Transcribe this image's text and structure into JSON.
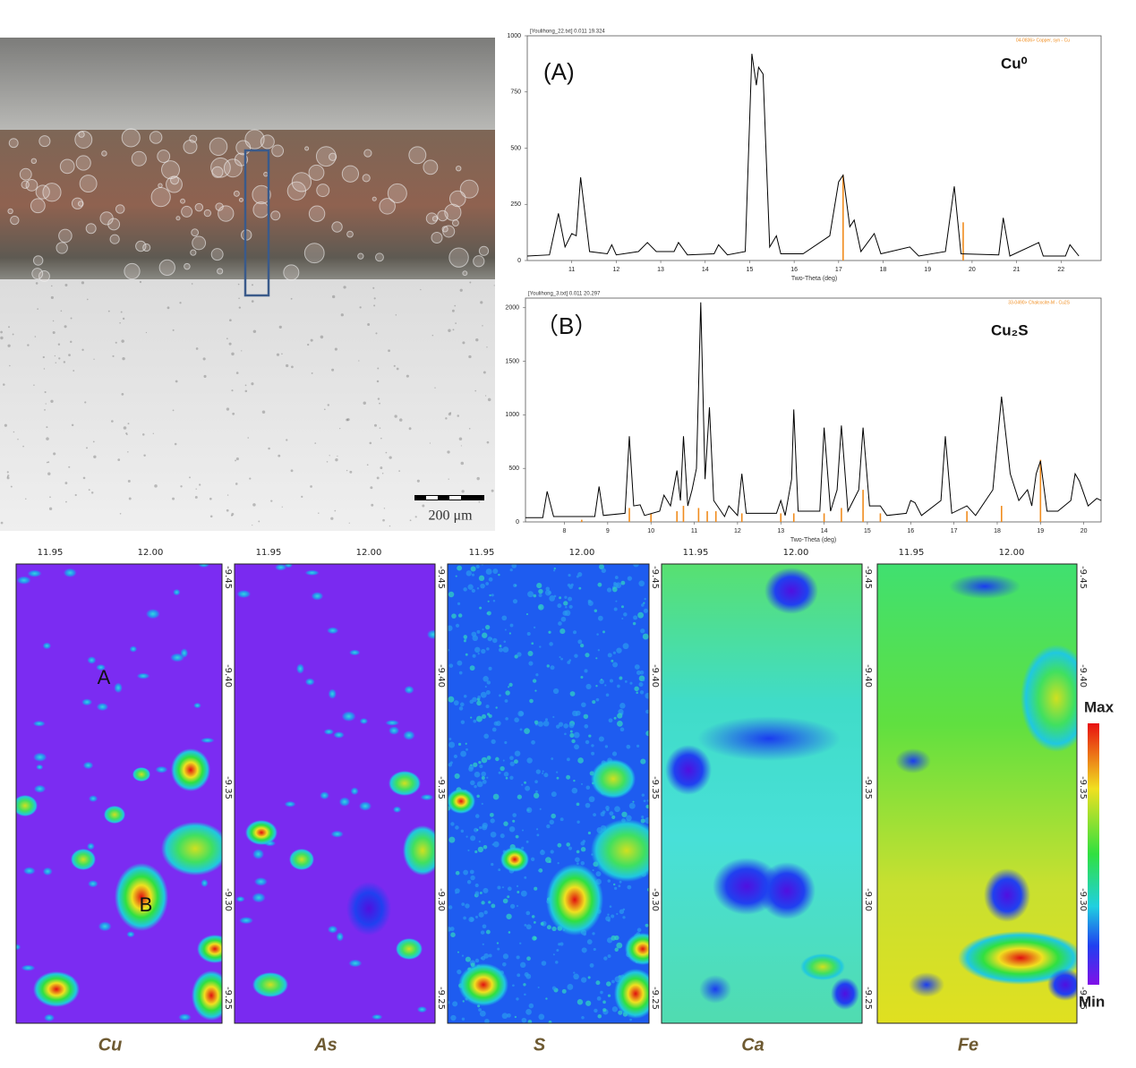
{
  "micrograph": {
    "scale_label": "200 μm"
  },
  "chart_data": [
    {
      "type": "line",
      "header": "[Youlihong_22.txt] 0.011 19.324",
      "reference_label": "04-0836> Copper, syn - Cu",
      "label": "(A)",
      "phase": "Cu⁰",
      "xlabel": "Two-Theta (deg)",
      "xlim": [
        10,
        22.9
      ],
      "xticks": [
        11,
        12,
        13,
        14,
        15,
        16,
        17,
        18,
        19,
        20,
        21,
        22
      ],
      "ylim": [
        0,
        1000
      ],
      "yticks": [
        0,
        250,
        500,
        750,
        1000
      ],
      "color": "#000000",
      "x": [
        10.0,
        10.5,
        10.7,
        10.85,
        11.0,
        11.1,
        11.2,
        11.4,
        11.8,
        11.9,
        12.0,
        12.5,
        12.7,
        12.9,
        13.3,
        13.4,
        13.6,
        14.2,
        14.3,
        14.5,
        14.9,
        15.05,
        15.15,
        15.2,
        15.3,
        15.45,
        15.6,
        15.7,
        16.2,
        16.8,
        17.0,
        17.1,
        17.25,
        17.35,
        17.5,
        17.8,
        17.95,
        18.6,
        18.8,
        19.4,
        19.6,
        19.75,
        20.6,
        20.7,
        20.85,
        21.5,
        21.6,
        22.1,
        22.2,
        22.4
      ],
      "values": [
        20,
        25,
        210,
        60,
        120,
        110,
        370,
        40,
        30,
        70,
        25,
        40,
        80,
        40,
        40,
        80,
        25,
        30,
        70,
        25,
        40,
        920,
        780,
        860,
        830,
        60,
        110,
        30,
        30,
        110,
        350,
        380,
        150,
        180,
        40,
        120,
        30,
        60,
        20,
        40,
        330,
        30,
        25,
        190,
        20,
        80,
        20,
        20,
        70,
        20
      ],
      "reference": {
        "color": "#f08c1e",
        "x": [
          17.1,
          19.8
        ],
        "values": [
          380,
          170
        ]
      }
    },
    {
      "type": "line",
      "header": "[Youlihong_3.txt] 0.011 20.297",
      "reference_label": "33-0490> Chalcocite-M - Cu2S",
      "label": "（B）",
      "phase": "Cu₂S",
      "xlabel": "Two-Theta (deg)",
      "xlim": [
        7.1,
        20.4
      ],
      "xticks": [
        8,
        9,
        10,
        11,
        12,
        13,
        14,
        15,
        16,
        17,
        18,
        19,
        20
      ],
      "ylim": [
        0,
        2090
      ],
      "yticks": [
        0,
        500,
        1000,
        1500,
        2000
      ],
      "color": "#000000",
      "x": [
        7.1,
        7.5,
        7.6,
        7.75,
        8.7,
        8.8,
        8.9,
        9.4,
        9.5,
        9.6,
        9.75,
        9.85,
        10.2,
        10.3,
        10.45,
        10.6,
        10.68,
        10.75,
        10.85,
        10.95,
        11.05,
        11.15,
        11.25,
        11.35,
        11.45,
        11.7,
        11.8,
        12.0,
        12.1,
        12.2,
        12.9,
        13.0,
        13.1,
        13.25,
        13.3,
        13.4,
        13.9,
        14.0,
        14.15,
        14.3,
        14.4,
        14.55,
        14.8,
        14.9,
        15.05,
        15.3,
        15.45,
        15.9,
        16.0,
        16.1,
        16.25,
        16.7,
        16.8,
        16.95,
        17.3,
        17.5,
        17.9,
        18.1,
        18.3,
        18.5,
        18.7,
        18.8,
        18.9,
        19.0,
        19.15,
        19.4,
        19.7,
        19.8,
        19.9,
        20.1,
        20.3,
        20.4
      ],
      "values": [
        40,
        40,
        285,
        50,
        50,
        330,
        60,
        80,
        800,
        150,
        160,
        60,
        100,
        250,
        150,
        480,
        200,
        800,
        150,
        300,
        500,
        2050,
        400,
        1070,
        200,
        50,
        150,
        60,
        450,
        80,
        80,
        200,
        60,
        400,
        1050,
        100,
        100,
        880,
        100,
        300,
        900,
        100,
        300,
        880,
        150,
        150,
        60,
        80,
        200,
        180,
        60,
        200,
        800,
        80,
        150,
        60,
        300,
        1170,
        450,
        200,
        300,
        150,
        450,
        570,
        100,
        100,
        200,
        450,
        380,
        150,
        220,
        200
      ],
      "reference": {
        "color": "#f08c1e",
        "x": [
          8.4,
          9.5,
          10.0,
          10.6,
          10.75,
          11.1,
          11.3,
          11.5,
          12.1,
          13.0,
          13.3,
          14.0,
          14.4,
          14.9,
          15.3,
          17.3,
          18.1,
          19.0
        ],
        "values": [
          20,
          130,
          80,
          100,
          150,
          130,
          100,
          100,
          80,
          80,
          80,
          80,
          130,
          300,
          80,
          100,
          150,
          580
        ]
      }
    }
  ],
  "maps": {
    "x_ticks": [
      "11.95",
      "12.00"
    ],
    "y_ticks": [
      "-9.45",
      "-9.40",
      "-9.35",
      "-9.30",
      "-9.25"
    ],
    "panels": [
      "Cu",
      "As",
      "S",
      "Ca",
      "Fe"
    ],
    "annotations": [
      "A",
      "B"
    ],
    "colorbar": {
      "max": "Max",
      "min": "Min"
    }
  }
}
